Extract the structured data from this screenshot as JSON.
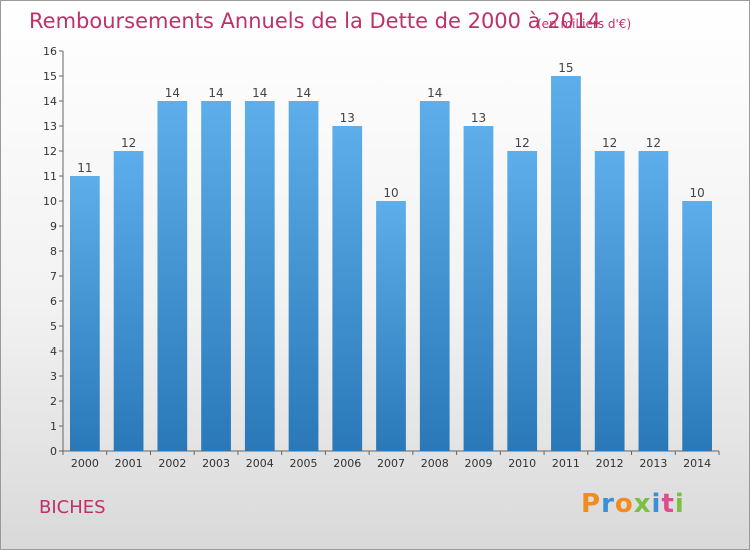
{
  "header": {
    "title": "Remboursements Annuels de la Dette de 2000 à 2014",
    "unit": "(en milliers d'€)"
  },
  "footer": {
    "commune": "BICHES",
    "logo": "Proxiti"
  },
  "colors": {
    "title": "#c0306a",
    "bar_top": "#5daeea",
    "bar_bottom": "#2a78b8"
  },
  "chart_data": {
    "type": "bar",
    "title": "Remboursements Annuels de la Dette de 2000 à 2014",
    "subtitle": "(en milliers d'€)",
    "categories": [
      "2000",
      "2001",
      "2002",
      "2003",
      "2004",
      "2005",
      "2006",
      "2007",
      "2008",
      "2009",
      "2010",
      "2011",
      "2012",
      "2013",
      "2014"
    ],
    "values": [
      11,
      12,
      14,
      14,
      14,
      14,
      13,
      10,
      14,
      13,
      12,
      15,
      12,
      12,
      10
    ],
    "ylim": [
      0,
      16
    ],
    "yticks": [
      0,
      1,
      2,
      3,
      4,
      5,
      6,
      7,
      8,
      9,
      10,
      11,
      12,
      13,
      14,
      15,
      16
    ],
    "grid": false,
    "legend": "none"
  }
}
